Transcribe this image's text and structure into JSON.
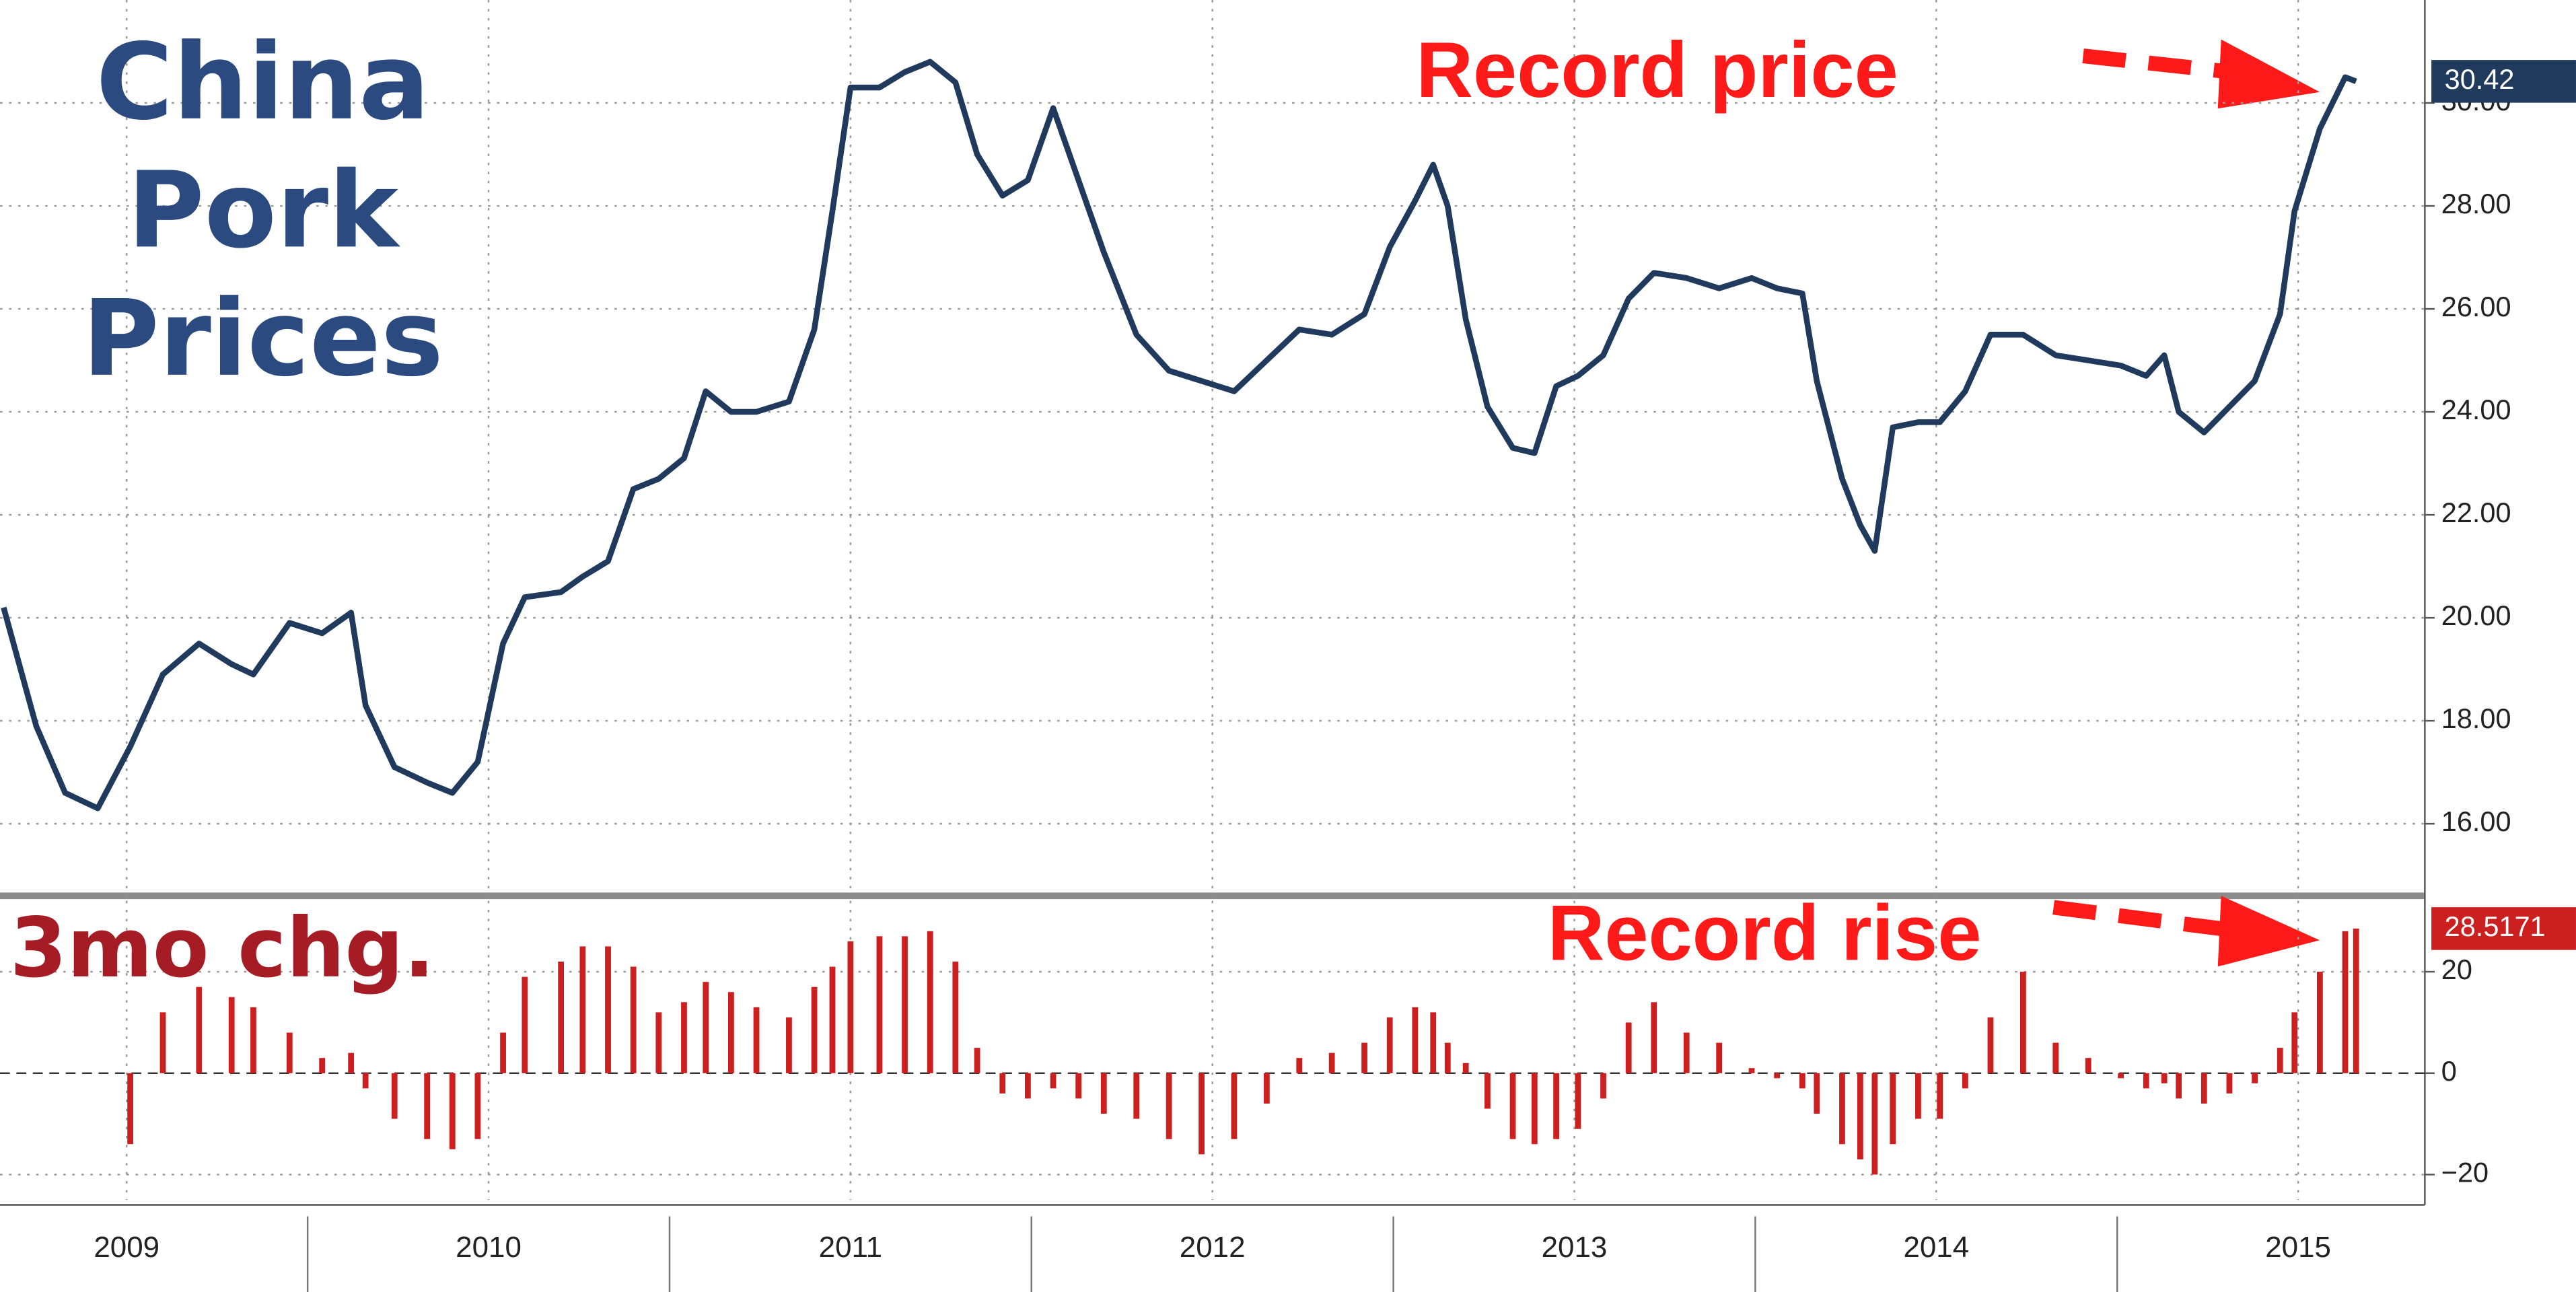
{
  "chart_data": [
    {
      "type": "line",
      "title": "China Pork Prices",
      "annotation": "Record price",
      "color": "#1f3a5c",
      "grid": true,
      "x": [
        2009.16,
        2009.25,
        2009.33,
        2009.42,
        2009.51,
        2009.6,
        2009.7,
        2009.79,
        2009.85,
        2009.95,
        2010.04,
        2010.12,
        2010.16,
        2010.24,
        2010.33,
        2010.4,
        2010.47,
        2010.54,
        2010.6,
        2010.7,
        2010.76,
        2010.83,
        2010.9,
        2010.97,
        2011.04,
        2011.1,
        2011.17,
        2011.24,
        2011.33,
        2011.4,
        2011.45,
        2011.5,
        2011.58,
        2011.65,
        2011.72,
        2011.79,
        2011.85,
        2011.92,
        2011.99,
        2012.06,
        2012.13,
        2012.2,
        2012.29,
        2012.38,
        2012.47,
        2012.56,
        2012.65,
        2012.74,
        2012.83,
        2012.92,
        2012.99,
        2013.06,
        2013.11,
        2013.15,
        2013.2,
        2013.26,
        2013.33,
        2013.39,
        2013.45,
        2013.51,
        2013.58,
        2013.65,
        2013.72,
        2013.81,
        2013.9,
        2013.99,
        2014.06,
        2014.13,
        2014.17,
        2014.24,
        2014.29,
        2014.33,
        2014.38,
        2014.45,
        2014.51,
        2014.58,
        2014.65,
        2014.74,
        2014.83,
        2014.92,
        2015.01,
        2015.08,
        2015.13,
        2015.17,
        2015.24,
        2015.31,
        2015.38,
        2015.45,
        2015.49,
        2015.56,
        2015.63,
        2015.66
      ],
      "values": [
        20.2,
        17.9,
        16.6,
        16.3,
        17.5,
        18.9,
        19.5,
        19.1,
        18.9,
        19.9,
        19.7,
        20.1,
        18.3,
        17.1,
        16.8,
        16.6,
        17.2,
        19.5,
        20.4,
        20.5,
        20.8,
        21.1,
        22.5,
        22.7,
        23.1,
        24.4,
        24.0,
        24.0,
        24.2,
        25.6,
        27.9,
        30.3,
        30.3,
        30.6,
        30.8,
        30.4,
        29.0,
        28.2,
        28.5,
        29.9,
        28.5,
        27.1,
        25.5,
        24.8,
        24.6,
        24.4,
        25.0,
        25.6,
        25.5,
        25.9,
        27.2,
        28.1,
        28.8,
        28.0,
        25.8,
        24.1,
        23.3,
        23.2,
        24.5,
        24.7,
        25.1,
        26.2,
        26.7,
        26.6,
        26.4,
        26.6,
        26.4,
        26.3,
        24.6,
        22.7,
        21.8,
        21.3,
        23.7,
        23.8,
        23.8,
        24.4,
        25.5,
        25.5,
        25.1,
        25.0,
        24.9,
        24.7,
        25.1,
        24.0,
        23.6,
        24.1,
        24.6,
        25.9,
        27.9,
        29.5,
        30.5,
        30.42
      ],
      "xlim": [
        2009.15,
        2015.85
      ],
      "ylim": [
        14.6,
        32
      ],
      "yticks": [
        {
          "value": 16,
          "label": "16.00"
        },
        {
          "value": 18,
          "label": "18.00"
        },
        {
          "value": 20,
          "label": "20.00"
        },
        {
          "value": 22,
          "label": "22.00"
        },
        {
          "value": 24,
          "label": "24.00"
        },
        {
          "value": 26,
          "label": "26.00"
        },
        {
          "value": 28,
          "label": "28.00"
        },
        {
          "value": 30,
          "label": "30.00"
        }
      ]
    },
    {
      "type": "bar",
      "title": "3mo chg.",
      "annotation": "Record rise",
      "color": "#cc1f1f",
      "grid": true,
      "x": [
        2009.16,
        2009.25,
        2009.33,
        2009.42,
        2009.51,
        2009.6,
        2009.7,
        2009.79,
        2009.85,
        2009.95,
        2010.04,
        2010.12,
        2010.16,
        2010.24,
        2010.33,
        2010.4,
        2010.47,
        2010.54,
        2010.6,
        2010.7,
        2010.76,
        2010.83,
        2010.9,
        2010.97,
        2011.04,
        2011.1,
        2011.17,
        2011.24,
        2011.33,
        2011.4,
        2011.45,
        2011.5,
        2011.58,
        2011.65,
        2011.72,
        2011.79,
        2011.85,
        2011.92,
        2011.99,
        2012.06,
        2012.13,
        2012.2,
        2012.29,
        2012.38,
        2012.47,
        2012.56,
        2012.65,
        2012.74,
        2012.83,
        2012.92,
        2012.99,
        2013.06,
        2013.11,
        2013.15,
        2013.2,
        2013.26,
        2013.33,
        2013.39,
        2013.45,
        2013.51,
        2013.58,
        2013.65,
        2013.72,
        2013.81,
        2013.9,
        2013.99,
        2014.06,
        2014.13,
        2014.17,
        2014.24,
        2014.29,
        2014.33,
        2014.38,
        2014.45,
        2014.51,
        2014.58,
        2014.65,
        2014.74,
        2014.83,
        2014.92,
        2015.01,
        2015.08,
        2015.13,
        2015.17,
        2015.24,
        2015.31,
        2015.38,
        2015.45,
        2015.49,
        2015.56,
        2015.63,
        2015.66
      ],
      "values": [
        null,
        null,
        null,
        null,
        -14,
        12,
        17,
        15,
        13,
        8,
        3,
        4,
        -3,
        -9,
        -13,
        -15,
        -13,
        8,
        19,
        22,
        25,
        25,
        21,
        12,
        14,
        18,
        16,
        13,
        11,
        17,
        21,
        26,
        27,
        27,
        28,
        22,
        5,
        -4,
        -5,
        -3,
        -5,
        -8,
        -9,
        -13,
        -16,
        -13,
        -6,
        3,
        4,
        6,
        11,
        13,
        12,
        6,
        2,
        -7,
        -13,
        -14,
        -13,
        -11,
        -5,
        10,
        14,
        8,
        6,
        1,
        -1,
        -3,
        -8,
        -14,
        -17,
        -20,
        -14,
        -9,
        -9,
        -3,
        11,
        20,
        6,
        3,
        -1,
        -3,
        -2,
        -5,
        -6,
        -4,
        -2,
        5,
        12,
        20,
        28,
        28.5171
      ],
      "xlim": [
        2009.15,
        2015.85
      ],
      "ylim": [
        -25,
        34
      ],
      "yticks": [
        {
          "value": -20,
          "label": "−20"
        },
        0,
        20
      ],
      "xticks": [
        {
          "value": 2009.5,
          "label": "2009"
        },
        {
          "value": 2010.5,
          "label": "2010"
        },
        {
          "value": 2011.5,
          "label": "2011"
        },
        {
          "value": 2012.5,
          "label": "2012"
        },
        {
          "value": 2013.5,
          "label": "2013"
        },
        {
          "value": 2014.5,
          "label": "2014"
        },
        {
          "value": 2015.5,
          "label": "2015"
        }
      ]
    }
  ]
}
